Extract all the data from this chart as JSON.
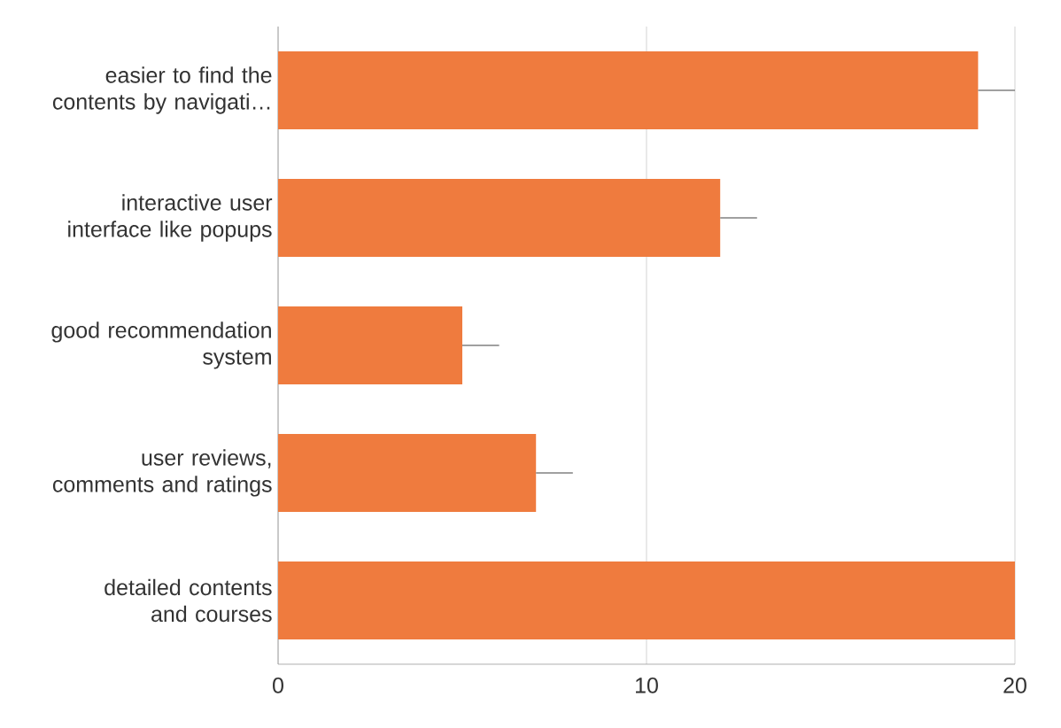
{
  "chart_data": {
    "type": "bar",
    "orientation": "horizontal",
    "categories": [
      "easier to find the contents by navigati…",
      "interactive user interface like popups",
      "good recommendation system",
      "user reviews, comments and ratings",
      "detailed contents and courses"
    ],
    "values": [
      19,
      12,
      5,
      7,
      20
    ],
    "errors": [
      [
        19,
        20
      ],
      [
        12,
        13
      ],
      [
        5,
        6
      ],
      [
        7,
        8
      ],
      null
    ],
    "color": "#ef7b3e",
    "xlim": [
      0,
      20
    ],
    "xticks": [
      0,
      10,
      20
    ],
    "grid": "x"
  }
}
